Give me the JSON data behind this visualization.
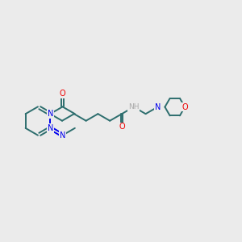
{
  "bg_color": "#ebebeb",
  "bond_color": "#2d6e6e",
  "N_color": "#0000ee",
  "O_color": "#ee0000",
  "H_color": "#aaaaaa",
  "line_width": 1.4,
  "figsize": [
    3.0,
    3.0
  ],
  "dpi": 100,
  "xlim": [
    0,
    10
  ],
  "ylim": [
    2,
    8
  ]
}
